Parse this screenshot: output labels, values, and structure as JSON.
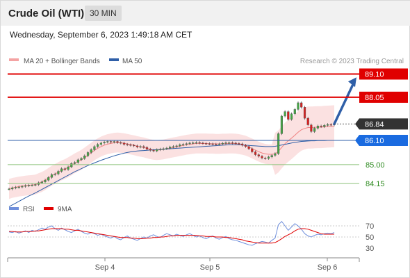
{
  "header": {
    "title": "Crude Oil (WTI)",
    "timeframe": "30 MIN"
  },
  "timestamp": "Wednesday, September 6, 2023 1:49:18 AM CET",
  "legend": {
    "ma20": "MA 20 + Bollinger Bands",
    "ma50": "MA 50",
    "credit": "Research © 2023 Trading Central"
  },
  "colors": {
    "resistance": "#e00000",
    "current": "#333333",
    "ma50": "#2f5fa8",
    "support": "#8bc27a",
    "support_text": "#2d8a1f",
    "bull": "#44a544",
    "bear": "#d62020",
    "bollinger": "#f7c9c9",
    "arrow": "#2f5fa8"
  },
  "chart_data": [
    {
      "type": "candlestick",
      "instrument": "Crude Oil (WTI)",
      "interval": "30 MIN",
      "x_ticks": [
        "Sep 4",
        "Sep 5",
        "Sep 6"
      ],
      "ylim": [
        83.3,
        89.4
      ],
      "levels": [
        {
          "value": 89.1,
          "label": "89.10",
          "kind": "resistance"
        },
        {
          "value": 88.05,
          "label": "88.05",
          "kind": "resistance"
        },
        {
          "value": 86.84,
          "label": "86.84",
          "kind": "current"
        },
        {
          "value": 86.1,
          "label": "86.10",
          "kind": "ma50"
        },
        {
          "value": 85.0,
          "label": "85.00",
          "kind": "support"
        },
        {
          "value": 84.15,
          "label": "84.15",
          "kind": "support"
        }
      ],
      "close": [
        83.9,
        83.95,
        83.98,
        83.99,
        84.02,
        84.05,
        84.07,
        84.08,
        84.1,
        84.18,
        84.22,
        84.3,
        84.42,
        84.55,
        84.58,
        84.7,
        84.82,
        84.78,
        84.9,
        85.05,
        85.1,
        85.22,
        85.28,
        85.4,
        85.55,
        85.68,
        85.82,
        85.92,
        85.98,
        86.02,
        86.05,
        86.02,
        86.05,
        86.0,
        85.98,
        85.92,
        85.9,
        85.88,
        85.85,
        85.8,
        85.82,
        85.78,
        85.7,
        85.65,
        85.62,
        85.68,
        85.7,
        85.72,
        85.75,
        85.8,
        85.82,
        85.85,
        85.9,
        85.92,
        85.95,
        85.98,
        85.99,
        86.0,
        85.98,
        85.96,
        85.95,
        85.94,
        85.93,
        85.92,
        85.94,
        85.97,
        85.99,
        85.99,
        85.98,
        85.96,
        85.94,
        85.88,
        85.82,
        85.72,
        85.58,
        85.45,
        85.38,
        85.3,
        85.28,
        85.35,
        85.42,
        85.5,
        86.4,
        87.2,
        87.4,
        87.05,
        87.3,
        87.5,
        87.8,
        87.6,
        87.1,
        86.8,
        86.5,
        86.65,
        86.75,
        86.72,
        86.78,
        86.82,
        86.8,
        86.84
      ],
      "ma20": [
        83.9,
        83.95,
        83.98,
        84.01,
        84.03,
        84.05,
        84.07,
        84.08,
        84.1,
        84.16,
        84.22,
        84.3,
        84.4,
        84.5,
        84.58,
        84.66,
        84.74,
        84.8,
        84.88,
        84.97,
        85.06,
        85.14,
        85.22,
        85.32,
        85.43,
        85.54,
        85.65,
        85.74,
        85.82,
        85.88,
        85.93,
        85.96,
        85.99,
        86.0,
        85.99,
        85.97,
        85.94,
        85.91,
        85.88,
        85.84,
        85.81,
        85.78,
        85.74,
        85.7,
        85.67,
        85.66,
        85.67,
        85.69,
        85.72,
        85.75,
        85.78,
        85.81,
        85.84,
        85.87,
        85.9,
        85.92,
        85.94,
        85.96,
        85.96,
        85.96,
        85.96,
        85.95,
        85.95,
        85.94,
        85.94,
        85.95,
        85.95,
        85.96,
        85.96,
        85.95,
        85.93,
        85.9,
        85.86,
        85.8,
        85.73,
        85.66,
        85.59,
        85.53,
        85.49,
        85.47,
        85.47,
        85.49,
        85.6,
        85.78,
        85.95,
        86.08,
        86.2,
        86.33,
        86.47,
        86.58,
        86.64,
        86.68,
        86.68,
        86.69,
        86.7,
        86.7,
        86.71,
        86.72,
        86.73,
        86.74
      ],
      "ma50": [
        83.1,
        83.18,
        83.26,
        83.34,
        83.42,
        83.5,
        83.58,
        83.65,
        83.72,
        83.8,
        83.88,
        83.96,
        84.04,
        84.12,
        84.2,
        84.28,
        84.36,
        84.44,
        84.52,
        84.6,
        84.68,
        84.75,
        84.82,
        84.89,
        84.96,
        85.02,
        85.08,
        85.14,
        85.2,
        85.25,
        85.3,
        85.35,
        85.4,
        85.44,
        85.48,
        85.52,
        85.55,
        85.58,
        85.6,
        85.62,
        85.63,
        85.64,
        85.65,
        85.66,
        85.67,
        85.68,
        85.69,
        85.7,
        85.71,
        85.72,
        85.73,
        85.74,
        85.75,
        85.76,
        85.77,
        85.78,
        85.79,
        85.8,
        85.81,
        85.82,
        85.83,
        85.84,
        85.85,
        85.86,
        85.87,
        85.88,
        85.89,
        85.9,
        85.9,
        85.9,
        85.9,
        85.89,
        85.88,
        85.87,
        85.86,
        85.85,
        85.84,
        85.83,
        85.82,
        85.82,
        85.82,
        85.83,
        85.86,
        85.89,
        85.92,
        85.95,
        85.98,
        86.01,
        86.03,
        86.05,
        86.06,
        86.07,
        86.08,
        86.08,
        86.09,
        86.09,
        86.09,
        86.1,
        86.1,
        86.1
      ],
      "forecast_arrow": {
        "from": 86.84,
        "to": 88.95
      }
    },
    {
      "type": "line",
      "legend": [
        "RSI",
        "9MA"
      ],
      "y_ticks": [
        70,
        50,
        30
      ],
      "ylim": [
        20,
        80
      ],
      "rsi": [
        59,
        58,
        60,
        57,
        59,
        61,
        58,
        62,
        60,
        63,
        66,
        64,
        68,
        70,
        65,
        62,
        66,
        63,
        60,
        58,
        61,
        64,
        60,
        57,
        55,
        58,
        56,
        53,
        55,
        52,
        50,
        48,
        51,
        47,
        45,
        49,
        52,
        48,
        46,
        44,
        47,
        50,
        48,
        52,
        54,
        51,
        49,
        53,
        56,
        54,
        52,
        55,
        53,
        51,
        54,
        56,
        53,
        50,
        52,
        49,
        47,
        50,
        52,
        48,
        46,
        49,
        51,
        47,
        45,
        44,
        42,
        40,
        38,
        36,
        35,
        38,
        40,
        42,
        41,
        39,
        44,
        48,
        72,
        78,
        70,
        62,
        68,
        74,
        70,
        64,
        56,
        52,
        50,
        53,
        55,
        54,
        56,
        57,
        56,
        58
      ],
      "ma9": [
        60,
        60,
        59,
        59,
        59,
        60,
        60,
        60,
        61,
        61,
        62,
        63,
        64,
        65,
        65,
        65,
        65,
        64,
        64,
        63,
        62,
        62,
        61,
        60,
        59,
        58,
        57,
        56,
        55,
        54,
        53,
        52,
        51,
        50,
        49,
        49,
        49,
        48,
        48,
        47,
        47,
        47,
        48,
        48,
        49,
        49,
        50,
        50,
        51,
        52,
        52,
        53,
        53,
        53,
        53,
        53,
        53,
        53,
        52,
        52,
        51,
        51,
        51,
        50,
        50,
        50,
        49,
        49,
        48,
        47,
        46,
        45,
        43,
        42,
        41,
        40,
        39,
        39,
        39,
        39,
        39,
        40,
        43,
        47,
        51,
        54,
        57,
        61,
        64,
        65,
        65,
        64,
        62,
        60,
        58,
        56,
        55,
        55,
        55,
        55
      ]
    }
  ]
}
